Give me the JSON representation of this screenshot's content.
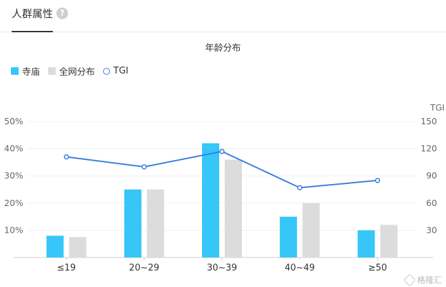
{
  "header": {
    "tab_label": "人群属性",
    "help_icon": "question-icon",
    "help_glyph": "?"
  },
  "chart_data": {
    "type": "bar",
    "title": "年龄分布",
    "categories": [
      "≤19",
      "20~29",
      "30~39",
      "40~49",
      "≥50"
    ],
    "series": [
      {
        "name": "寺庙",
        "kind": "bar",
        "color": "#36c6f7",
        "values": [
          8,
          25,
          42,
          15,
          10
        ]
      },
      {
        "name": "全网分布",
        "kind": "bar",
        "color": "#dcdcdc",
        "values": [
          7.5,
          25,
          36,
          20,
          12
        ]
      },
      {
        "name": "TGI",
        "kind": "line",
        "axis": "right",
        "color": "#3a7ee0",
        "values": [
          111,
          100,
          117,
          77,
          85
        ]
      }
    ],
    "y_left": {
      "min": 0,
      "max": 50,
      "ticks": [
        "10%",
        "20%",
        "30%",
        "40%",
        "50%"
      ],
      "tick_values": [
        10,
        20,
        30,
        40,
        50
      ]
    },
    "y_right": {
      "label": "TGI",
      "min": 0,
      "max": 150,
      "ticks": [
        "30",
        "60",
        "90",
        "120",
        "150"
      ],
      "tick_values": [
        30,
        60,
        90,
        120,
        150
      ]
    },
    "legend_position": "top-left",
    "grid": true
  },
  "watermark": {
    "text": "格隆汇"
  }
}
